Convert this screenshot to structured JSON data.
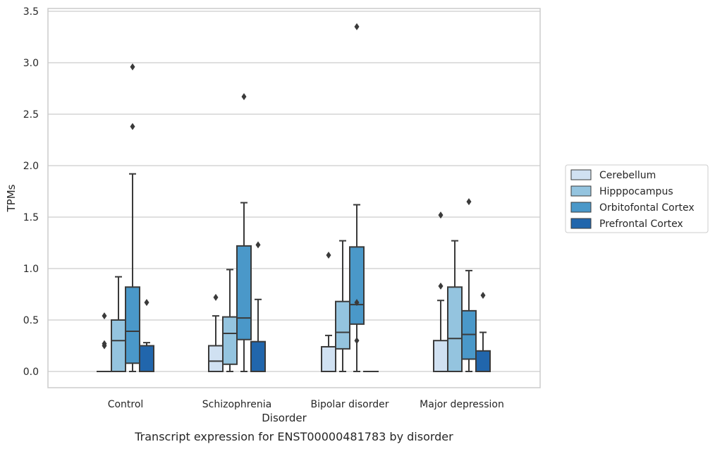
{
  "chart_data": {
    "type": "box",
    "xlabel": "Disorder",
    "ylabel": "TPMs",
    "caption": "Transcript expression for ENST00000481783 by disorder",
    "categories": [
      "Control",
      "Schizophrenia",
      "Bipolar disorder",
      "Major depression"
    ],
    "ylim": [
      -0.15,
      3.52
    ],
    "yticks": [
      0.0,
      0.5,
      1.0,
      1.5,
      2.0,
      2.5,
      3.0,
      3.5
    ],
    "ytick_labels": [
      "0.0",
      "0.5",
      "1.0",
      "1.5",
      "2.0",
      "2.5",
      "3.0",
      "3.5"
    ],
    "grid": "horizontal",
    "legend_position": "right",
    "series": [
      {
        "name": "Cerebellum",
        "color": "#d0e1f2",
        "boxes": [
          {
            "whisker_low": 0.0,
            "q1": 0.0,
            "median": 0.0,
            "q3": 0.0,
            "whisker_high": 0.0,
            "outliers": [
              0.54,
              0.27,
              0.25
            ]
          },
          {
            "whisker_low": 0.0,
            "q1": 0.0,
            "median": 0.1,
            "q3": 0.25,
            "whisker_high": 0.54,
            "outliers": [
              0.72
            ]
          },
          {
            "whisker_low": 0.0,
            "q1": 0.0,
            "median": 0.0,
            "q3": 0.24,
            "whisker_high": 0.35,
            "outliers": [
              1.13
            ]
          },
          {
            "whisker_low": 0.0,
            "q1": 0.0,
            "median": 0.0,
            "q3": 0.3,
            "whisker_high": 0.69,
            "outliers": [
              1.52,
              0.83
            ]
          }
        ]
      },
      {
        "name": "Hipppocampus",
        "color": "#94c4df",
        "boxes": [
          {
            "whisker_low": 0.0,
            "q1": 0.0,
            "median": 0.3,
            "q3": 0.5,
            "whisker_high": 0.92,
            "outliers": []
          },
          {
            "whisker_low": 0.0,
            "q1": 0.07,
            "median": 0.37,
            "q3": 0.53,
            "whisker_high": 0.99,
            "outliers": []
          },
          {
            "whisker_low": 0.0,
            "q1": 0.22,
            "median": 0.38,
            "q3": 0.68,
            "whisker_high": 1.27,
            "outliers": []
          },
          {
            "whisker_low": 0.0,
            "q1": 0.0,
            "median": 0.32,
            "q3": 0.82,
            "whisker_high": 1.27,
            "outliers": []
          }
        ]
      },
      {
        "name": "Orbitofontal Cortex",
        "color": "#4a98c9",
        "boxes": [
          {
            "whisker_low": 0.0,
            "q1": 0.08,
            "median": 0.39,
            "q3": 0.82,
            "whisker_high": 1.92,
            "outliers": [
              2.96,
              2.38
            ]
          },
          {
            "whisker_low": 0.0,
            "q1": 0.31,
            "median": 0.52,
            "q3": 1.22,
            "whisker_high": 1.64,
            "outliers": [
              2.67
            ]
          },
          {
            "whisker_low": 0.0,
            "q1": 0.46,
            "median": 0.65,
            "q3": 1.21,
            "whisker_high": 1.62,
            "outliers": [
              3.35,
              0.67,
              0.3
            ]
          },
          {
            "whisker_low": 0.0,
            "q1": 0.12,
            "median": 0.36,
            "q3": 0.59,
            "whisker_high": 0.98,
            "outliers": [
              1.65
            ]
          }
        ]
      },
      {
        "name": "Prefrontal Cortex",
        "color": "#2166ac",
        "boxes": [
          {
            "whisker_low": 0.0,
            "q1": 0.0,
            "median": 0.0,
            "q3": 0.25,
            "whisker_high": 0.28,
            "outliers": [
              0.67
            ]
          },
          {
            "whisker_low": 0.0,
            "q1": 0.0,
            "median": 0.0,
            "q3": 0.29,
            "whisker_high": 0.7,
            "outliers": [
              1.23
            ]
          },
          {
            "whisker_low": 0.0,
            "q1": 0.0,
            "median": 0.0,
            "q3": 0.0,
            "whisker_high": 0.0,
            "outliers": []
          },
          {
            "whisker_low": 0.0,
            "q1": 0.0,
            "median": 0.0,
            "q3": 0.2,
            "whisker_high": 0.38,
            "outliers": [
              0.74
            ]
          }
        ]
      }
    ]
  }
}
